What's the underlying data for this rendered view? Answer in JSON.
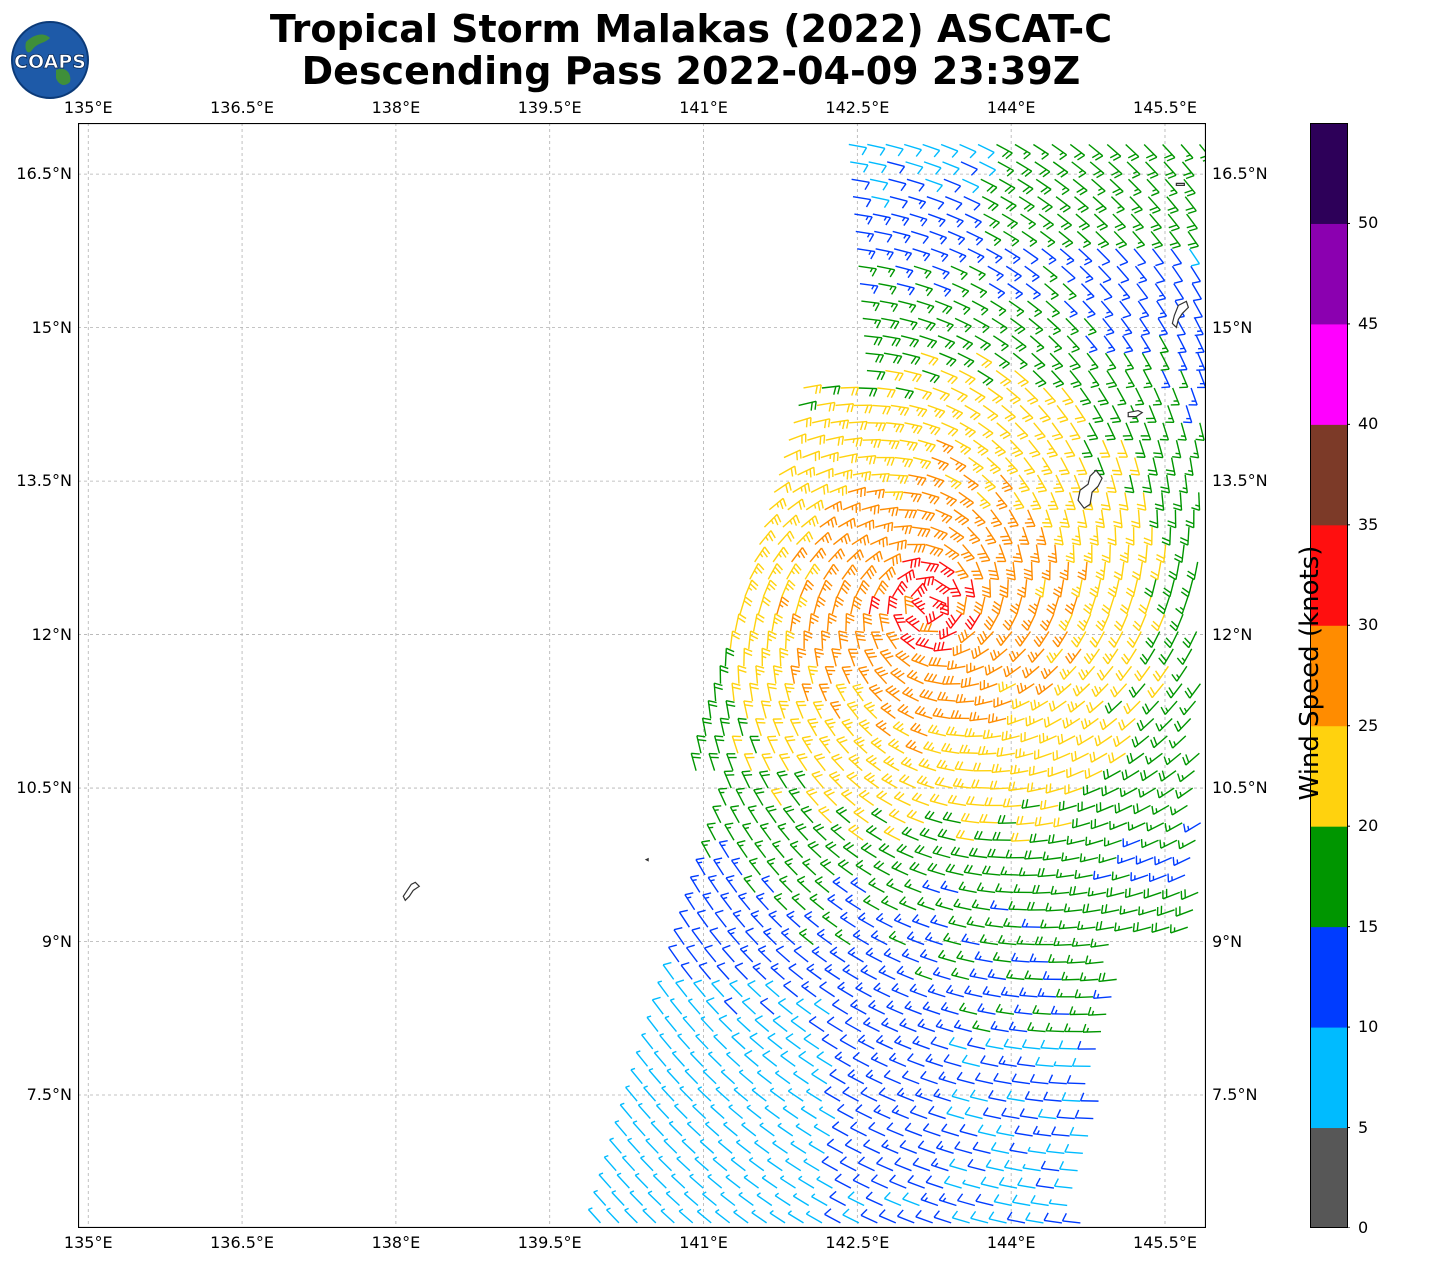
{
  "title": {
    "line1": "Tropical Storm Malakas (2022) ASCAT-C",
    "line2": "Descending Pass 2022-04-09 23:39Z"
  },
  "logo": {
    "text": "COAPS",
    "icon": "globe-logo-icon"
  },
  "map": {
    "lon_range": [
      134.9,
      145.9
    ],
    "lat_range": [
      6.2,
      17.0
    ],
    "lon_ticks": [
      "135°E",
      "136.5°E",
      "138°E",
      "139.5°E",
      "141°E",
      "142.5°E",
      "144°E",
      "145.5°E"
    ],
    "lat_ticks": [
      "16.5°N",
      "15°N",
      "13.5°N",
      "12°N",
      "10.5°N",
      "9°N",
      "7.5°N"
    ],
    "gridlines": true,
    "land_outlines": [
      "Guam",
      "Rota",
      "Saipan/Tinian",
      "Yap",
      "Ngulu"
    ]
  },
  "colorbar": {
    "label": "Wind Speed (knots)",
    "ticks": [
      "0",
      "5",
      "10",
      "15",
      "20",
      "25",
      "30",
      "35",
      "40",
      "45",
      "50"
    ],
    "colors": [
      "#575757",
      "#00bbff",
      "#003cff",
      "#009600",
      "#ffd20e",
      "#ff8c00",
      "#ff0f0f",
      "#7c3a28",
      "#ff00ff",
      "#8b00b0",
      "#2d0059"
    ]
  },
  "chart_data": {
    "type": "wind-barbs",
    "units": "knots",
    "swath_description": "ASCAT-C descending pass swath along eastern part of map",
    "speed_bins": [
      [
        0,
        5
      ],
      [
        5,
        10
      ],
      [
        10,
        15
      ],
      [
        15,
        20
      ],
      [
        20,
        25
      ],
      [
        25,
        30
      ],
      [
        30,
        35
      ],
      [
        35,
        40
      ],
      [
        40,
        45
      ],
      [
        45,
        50
      ],
      [
        50,
        55
      ]
    ]
  }
}
